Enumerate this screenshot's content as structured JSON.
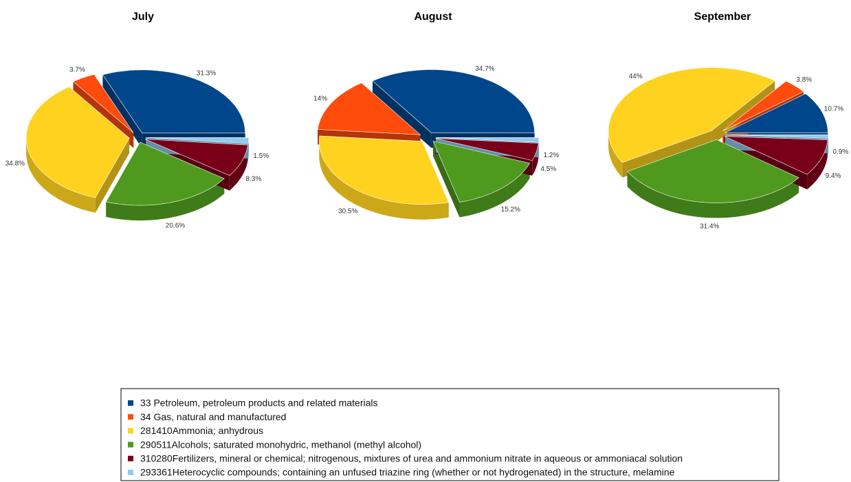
{
  "chart_data": [
    {
      "type": "pie",
      "title": "July",
      "categories": [
        "33  Petroleum, petroleum products and related materials",
        "34  Gas, natural and manufactured",
        "281410Ammonia; anhydrous",
        "290511Alcohols; saturated monohydric, methanol (methyl alcohol)",
        "310280Fertilizers, mineral or chemical; nitrogenous, mixtures of urea and ammonium nitrate in aqueous or ammoniacal solution",
        "293361Heterocyclic compounds; containing an unfused triazine ring (whether or not hydrogenated) in the structure, melamine"
      ],
      "colors": [
        "#00468b",
        "#ff4c0d",
        "#ffd21f",
        "#4f9a1e",
        "#7a0019",
        "#8ecbf0"
      ],
      "values": [
        31.3,
        3.7,
        34.8,
        20.6,
        8.3,
        1.5
      ],
      "value_labels": [
        "31.3%",
        "3.7%",
        "34.8%",
        "20.6%",
        "8.3%",
        "1.5%"
      ]
    },
    {
      "type": "pie",
      "title": "August",
      "categories": [
        "33  Petroleum, petroleum products and related materials",
        "34  Gas, natural and manufactured",
        "281410Ammonia; anhydrous",
        "290511Alcohols; saturated monohydric, methanol (methyl alcohol)",
        "310280Fertilizers, mineral or chemical; nitrogenous, mixtures of urea and ammonium nitrate in aqueous or ammoniacal solution",
        "293361Heterocyclic compounds; containing an unfused triazine ring (whether or not hydrogenated) in the structure, melamine"
      ],
      "colors": [
        "#00468b",
        "#ff4c0d",
        "#ffd21f",
        "#4f9a1e",
        "#7a0019",
        "#8ecbf0"
      ],
      "values": [
        34.7,
        14,
        30.5,
        15.2,
        4.5,
        1.2
      ],
      "value_labels": [
        "34.7%",
        "14%",
        "30.5%",
        "15.2%",
        "4.5%",
        "1.2%"
      ]
    },
    {
      "type": "pie",
      "title": "September",
      "categories": [
        "33  Petroleum, petroleum products and related materials",
        "34  Gas, natural and manufactured",
        "281410Ammonia; anhydrous",
        "290511Alcohols; saturated monohydric, methanol (methyl alcohol)",
        "310280Fertilizers, mineral or chemical; nitrogenous, mixtures of urea and ammonium nitrate in aqueous or ammoniacal solution",
        "293361Heterocyclic compounds; containing an unfused triazine ring (whether or not hydrogenated) in the structure, melamine"
      ],
      "colors": [
        "#00468b",
        "#ff4c0d",
        "#ffd21f",
        "#4f9a1e",
        "#7a0019",
        "#8ecbf0"
      ],
      "values": [
        10.7,
        3.8,
        44,
        31.4,
        9.4,
        0.9
      ],
      "value_labels": [
        "10.7%",
        "3.8%",
        "44%",
        "31.4%",
        "9.4%",
        "0.9%"
      ]
    }
  ]
}
